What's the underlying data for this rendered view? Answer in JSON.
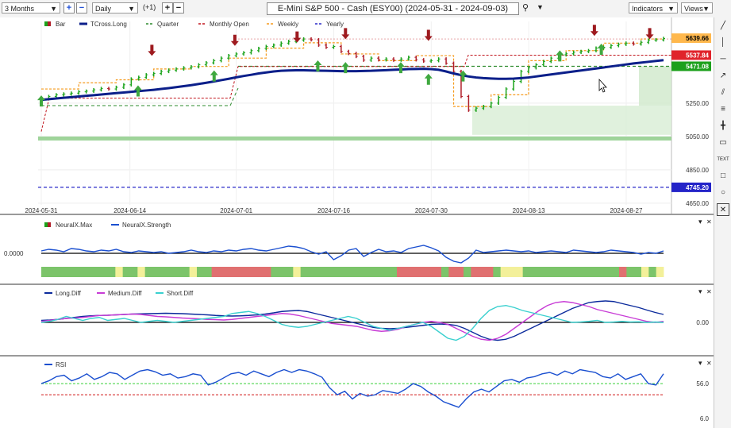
{
  "toolbar": {
    "period": "3 Months",
    "interval": "Daily",
    "plus_one": "(+1)",
    "title": "E-Mini S&P 500 - Cash (ESY00) (2024-05-31 - 2024-09-03)",
    "indicators_label": "Indicators",
    "views_label": "Views"
  },
  "colors": {
    "bar_up": "#1aa31a",
    "bar_down": "#b01d28",
    "tcross": "#0b1f8a",
    "quarter": "#2e8b2e",
    "monthly_open": "#c0141c",
    "weekly": "#f59a1c",
    "yearly": "#2a2ac9",
    "up_arrow": "#3fa83f",
    "down_arrow": "#9e1a1f"
  },
  "chart_data": [
    {
      "type": "line",
      "panel": "price",
      "legend": [
        "Bar",
        "TCross.Long",
        "Quarter",
        "Monthly Open",
        "Weekly",
        "Yearly"
      ],
      "x_ticks": [
        "2024-05-31",
        "2024-06-14",
        "2024-07-01",
        "2024-07-16",
        "2024-07-30",
        "2024-08-13",
        "2024-08-27"
      ],
      "y_ticks": [
        4650,
        4850,
        5050,
        5250
      ],
      "ylim": [
        4640,
        5740
      ],
      "price_labels": [
        "5639.66",
        "5537.84",
        "5471.08",
        "4745.20"
      ],
      "series": [
        {
          "name": "Bar",
          "values": [
            5278,
            5290,
            5300,
            5305,
            5310,
            5318,
            5322,
            5330,
            5338,
            5335,
            5345,
            5360,
            5395,
            5405,
            5420,
            5428,
            5440,
            5448,
            5455,
            5462,
            5468,
            5480,
            5492,
            5505,
            5520,
            5535,
            5545,
            5552,
            5565,
            5578,
            5590,
            5598,
            5610,
            5620,
            5628,
            5635,
            5630,
            5598,
            5585,
            5590,
            5560,
            5548,
            5530,
            5508,
            5520,
            5510,
            5515,
            5508,
            5515,
            5525,
            5510,
            5502,
            5505,
            5515,
            5490,
            5440,
            5290,
            5208,
            5220,
            5230,
            5250,
            5285,
            5335,
            5380,
            5440,
            5462,
            5480,
            5500,
            5520,
            5540,
            5546,
            5555,
            5560,
            5565,
            5580,
            5585,
            5595,
            5603,
            5610,
            5605,
            5615,
            5628,
            5630,
            5638
          ]
        },
        {
          "name": "TCross.Long",
          "values": [
            5270,
            5274,
            5278,
            5282,
            5286,
            5290,
            5294,
            5298,
            5302,
            5306,
            5310,
            5314,
            5318,
            5322,
            5326,
            5330,
            5335,
            5340,
            5346,
            5352,
            5358,
            5365,
            5372,
            5380,
            5388,
            5396,
            5405,
            5413,
            5420,
            5428,
            5434,
            5440,
            5444,
            5446,
            5447,
            5447,
            5446,
            5445,
            5444,
            5443,
            5442,
            5442,
            5442,
            5443,
            5444,
            5446,
            5448,
            5450,
            5452,
            5454,
            5455,
            5456,
            5454,
            5450,
            5440,
            5428,
            5418,
            5410,
            5404,
            5400,
            5398,
            5396,
            5396,
            5397,
            5400,
            5404,
            5410,
            5416,
            5422,
            5428,
            5434,
            5440,
            5446,
            5452,
            5458,
            5464,
            5470,
            5476,
            5482,
            5488,
            5493,
            5498,
            5503,
            5508
          ]
        },
        {
          "name": "Quarter",
          "values": [
            5471.08
          ]
        },
        {
          "name": "Monthly Open",
          "values": [
            5537.84
          ]
        },
        {
          "name": "Weekly",
          "values": [
            5335,
            5335,
            5335,
            5335,
            5335,
            5372,
            5372,
            5372,
            5372,
            5372,
            5390,
            5390,
            5390,
            5390,
            5390,
            5455,
            5455,
            5455,
            5455,
            5455,
            5470,
            5470,
            5470,
            5470,
            5470,
            5520,
            5520,
            5520,
            5520,
            5520,
            5580,
            5580,
            5580,
            5580,
            5580,
            5612,
            5612,
            5612,
            5612,
            5612,
            5545,
            5545,
            5545,
            5545,
            5545,
            5505,
            5505,
            5505,
            5505,
            5505,
            5535,
            5535,
            5535,
            5535,
            5535,
            5230,
            5230,
            5230,
            5230,
            5230,
            5300,
            5300,
            5300,
            5300,
            5300,
            5505,
            5505,
            5505,
            5505,
            5505,
            5565,
            5565,
            5565,
            5565,
            5565,
            5610,
            5610,
            5610,
            5610,
            5610,
            5635,
            5635,
            5635,
            5635
          ]
        },
        {
          "name": "Yearly",
          "values": [
            4745.2
          ]
        }
      ]
    },
    {
      "type": "line",
      "panel": "neuralx",
      "legend": [
        "NeuralX.Max",
        "NeuralX.Strength"
      ],
      "y_ticks": [
        "0.0000"
      ],
      "series": [
        {
          "name": "NeuralX.Strength",
          "values": [
            0.3,
            0.5,
            0.4,
            0.2,
            0.6,
            0.5,
            0.3,
            0.2,
            0.4,
            0.3,
            0.5,
            0.2,
            0.1,
            0.3,
            0.2,
            0.1,
            0.2,
            0.0,
            0.1,
            0.2,
            0.4,
            0.2,
            0.1,
            0.3,
            0.2,
            0.4,
            0.3,
            0.5,
            0.6,
            0.4,
            0.3,
            0.5,
            0.7,
            0.9,
            0.8,
            0.6,
            0.2,
            -0.1,
            0.2,
            -0.8,
            -0.3,
            0.4,
            0.6,
            -0.4,
            0.1,
            0.5,
            0.2,
            0.3,
            0.1,
            0.6,
            0.8,
            1.0,
            0.7,
            0.3,
            -0.5,
            -1.0,
            -1.2,
            -0.6,
            0.4,
            0.1,
            0.2,
            0.3,
            0.4,
            0.3,
            0.2,
            0.3,
            0.1,
            0.2,
            0.3,
            0.2,
            0.1,
            0.4,
            0.3,
            0.2,
            0.1,
            0.2,
            0.4,
            0.3,
            0.2,
            0.1,
            -0.1,
            0.1,
            0.0,
            0.3
          ]
        },
        {
          "name": "NeuralX.Max",
          "values": [
            "g",
            "g",
            "g",
            "g",
            "g",
            "g",
            "g",
            "g",
            "g",
            "g",
            "y",
            "g",
            "g",
            "y",
            "g",
            "g",
            "g",
            "g",
            "g",
            "g",
            "y",
            "g",
            "g",
            "r",
            "r",
            "r",
            "r",
            "r",
            "r",
            "r",
            "r",
            "g",
            "g",
            "g",
            "y",
            "g",
            "g",
            "g",
            "g",
            "g",
            "g",
            "g",
            "g",
            "g",
            "g",
            "g",
            "g",
            "g",
            "r",
            "r",
            "r",
            "r",
            "r",
            "r",
            "g",
            "r",
            "r",
            "g",
            "r",
            "r",
            "r",
            "g",
            "y",
            "y",
            "y",
            "g",
            "g",
            "g",
            "g",
            "g",
            "g",
            "g",
            "g",
            "g",
            "g",
            "g",
            "g",
            "g",
            "r",
            "g",
            "g",
            "y",
            "g",
            "y"
          ]
        }
      ]
    },
    {
      "type": "line",
      "panel": "diff",
      "legend": [
        "Long.Diff",
        "Medium.Diff",
        "Short.Diff"
      ],
      "y_ticks": [
        "0.00"
      ],
      "series": [
        {
          "name": "Long.Diff",
          "values": [
            0.1,
            0.12,
            0.15,
            0.2,
            0.25,
            0.3,
            0.33,
            0.35,
            0.36,
            0.38,
            0.4,
            0.42,
            0.43,
            0.44,
            0.45,
            0.46,
            0.45,
            0.44,
            0.42,
            0.4,
            0.38,
            0.35,
            0.33,
            0.32,
            0.33,
            0.35,
            0.38,
            0.42,
            0.48,
            0.55,
            0.58,
            0.6,
            0.55,
            0.45,
            0.35,
            0.25,
            0.15,
            0.05,
            -0.05,
            -0.15,
            -0.25,
            -0.3,
            -0.32,
            -0.3,
            -0.25,
            -0.2,
            -0.15,
            -0.1,
            -0.08,
            -0.1,
            -0.15,
            -0.3,
            -0.5,
            -0.7,
            -0.85,
            -0.9,
            -0.85,
            -0.7,
            -0.5,
            -0.3,
            -0.1,
            0.1,
            0.3,
            0.5,
            0.7,
            0.85,
            1.0,
            1.05,
            1.08,
            1.05,
            0.95,
            0.85,
            0.75,
            0.62,
            0.5,
            0.4
          ]
        },
        {
          "name": "Medium.Diff",
          "values": [
            0.05,
            0.1,
            0.15,
            0.2,
            0.22,
            0.25,
            0.3,
            0.35,
            0.36,
            0.38,
            0.4,
            0.42,
            0.4,
            0.35,
            0.3,
            0.28,
            0.25,
            0.22,
            0.2,
            0.18,
            0.15,
            0.14,
            0.12,
            0.15,
            0.2,
            0.25,
            0.3,
            0.35,
            0.4,
            0.45,
            0.42,
            0.35,
            0.25,
            0.15,
            0.05,
            -0.05,
            -0.1,
            -0.15,
            -0.2,
            -0.3,
            -0.4,
            -0.45,
            -0.42,
            -0.35,
            -0.2,
            -0.1,
            0.0,
            0.05,
            0.0,
            -0.1,
            -0.3,
            -0.5,
            -0.7,
            -0.85,
            -0.9,
            -0.8,
            -0.6,
            -0.3,
            0.0,
            0.3,
            0.6,
            0.85,
            1.0,
            1.05,
            1.0,
            0.9,
            0.8,
            0.65,
            0.55,
            0.45,
            0.35,
            0.25,
            0.15,
            0.05,
            0.0,
            0.05
          ]
        },
        {
          "name": "Short.Diff",
          "values": [
            0.0,
            0.05,
            0.15,
            0.3,
            0.2,
            0.1,
            0.2,
            0.25,
            0.1,
            0.15,
            0.2,
            0.1,
            0.0,
            0.05,
            0.1,
            0.05,
            0.0,
            0.05,
            0.1,
            0.15,
            0.2,
            0.25,
            0.3,
            0.45,
            0.5,
            0.55,
            0.45,
            0.3,
            0.1,
            -0.1,
            -0.2,
            -0.25,
            -0.2,
            -0.1,
            0.0,
            0.1,
            0.2,
            0.3,
            0.2,
            0.0,
            -0.2,
            -0.3,
            -0.4,
            -0.3,
            -0.2,
            -0.1,
            0.0,
            -0.2,
            -0.5,
            -0.8,
            -0.9,
            -0.7,
            -0.3,
            0.2,
            0.6,
            0.8,
            0.85,
            0.75,
            0.6,
            0.5,
            0.4,
            0.3,
            0.2,
            0.1,
            0.0,
            0.02,
            0.05,
            0.1,
            0.0,
            0.02,
            0.05,
            0.02,
            0.03,
            0.0,
            0.02,
            0.0
          ]
        }
      ]
    },
    {
      "type": "line",
      "panel": "rsi",
      "legend": [
        "RSI"
      ],
      "y_ticks": [
        "56.0",
        "6.0"
      ],
      "series": [
        {
          "name": "RSI",
          "values": [
            56,
            60,
            66,
            68,
            60,
            64,
            70,
            62,
            66,
            72,
            70,
            62,
            68,
            74,
            76,
            73,
            68,
            70,
            64,
            66,
            70,
            68,
            54,
            58,
            64,
            70,
            72,
            68,
            74,
            70,
            66,
            72,
            76,
            72,
            76,
            74,
            70,
            65,
            50,
            40,
            45,
            34,
            42,
            38,
            40,
            46,
            44,
            42,
            48,
            56,
            52,
            44,
            38,
            30,
            26,
            22,
            34,
            44,
            48,
            44,
            52,
            60,
            62,
            58,
            64,
            66,
            70,
            72,
            68,
            74,
            70,
            76,
            74,
            72,
            66,
            64,
            70,
            62,
            66,
            70,
            56,
            54,
            70
          ]
        }
      ]
    }
  ]
}
